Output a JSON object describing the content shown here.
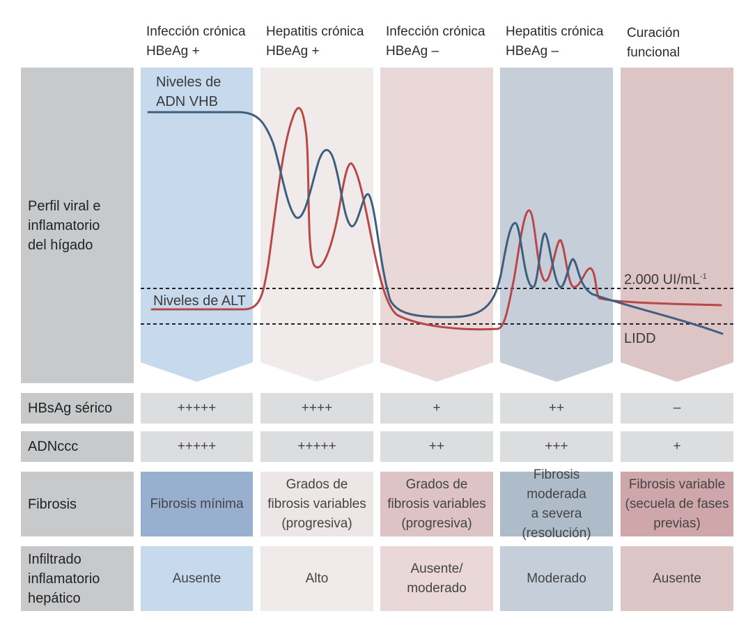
{
  "phases": [
    {
      "line1": "Infección crónica",
      "line2": "HBeAg +"
    },
    {
      "line1": "Hepatitis crónica",
      "line2": "HBeAg +"
    },
    {
      "line1": "Infección crónica",
      "line2": "HBeAg –"
    },
    {
      "line1": "Hepatitis crónica",
      "line2": "HBeAg –"
    },
    {
      "line1": "Curación",
      "line2": "funcional"
    }
  ],
  "colors": {
    "dna_line": "#3d5f7f",
    "alt_line": "#b84848",
    "phase_bg": [
      "#c7d9ec",
      "#f0eaea",
      "#ead7d8",
      "#c6cfd9",
      "#ddc4c5"
    ],
    "fibrosis_bg": [
      "#99afd0",
      "#ece6e6",
      "#ddc3c5",
      "#aebbc9",
      "#cfa7ab"
    ],
    "infiltrate_bg": [
      "#c7d9ec",
      "#f0eaea",
      "#ead7d8",
      "#c6cfd9",
      "#ddc4c5"
    ]
  },
  "chart": {
    "row_label_line1": "Perfil viral e",
    "row_label_line2": "inflamatorio",
    "row_label_line3": "del hígado",
    "dna_label_line1": "Niveles de",
    "dna_label_line2": "ADN VHB",
    "alt_label": "Niveles de ALT",
    "threshold_label": "2.000 UI/mL",
    "threshold_sup": "-1",
    "lidd_label": "LIDD"
  },
  "rows": {
    "hbsag": {
      "label": "HBsAg sérico",
      "values": [
        "+++++",
        "++++",
        "+",
        "++",
        "–"
      ]
    },
    "cccdna": {
      "label": "ADNccc",
      "values": [
        "+++++",
        "+++++",
        "++",
        "+++",
        "+"
      ]
    },
    "fibrosis": {
      "label": "Fibrosis",
      "values": [
        [
          "Fibrosis mínima"
        ],
        [
          "Grados de",
          "fibrosis variables",
          "(progresiva)"
        ],
        [
          "Grados de",
          "fibrosis variables",
          "(progresiva)"
        ],
        [
          "Fibrosis moderada",
          "a severa",
          "(resolución)"
        ],
        [
          "Fibrosis variable",
          "(secuela de fases",
          "previas)"
        ]
      ]
    },
    "infiltrate": {
      "label_line1": "Infiltrado",
      "label_line2": "inflamatorio",
      "label_line3": "hepático",
      "values": [
        [
          "Ausente"
        ],
        [
          "Alto"
        ],
        [
          "Ausente/",
          "moderado"
        ],
        [
          "Moderado"
        ],
        [
          "Ausente"
        ]
      ]
    }
  }
}
